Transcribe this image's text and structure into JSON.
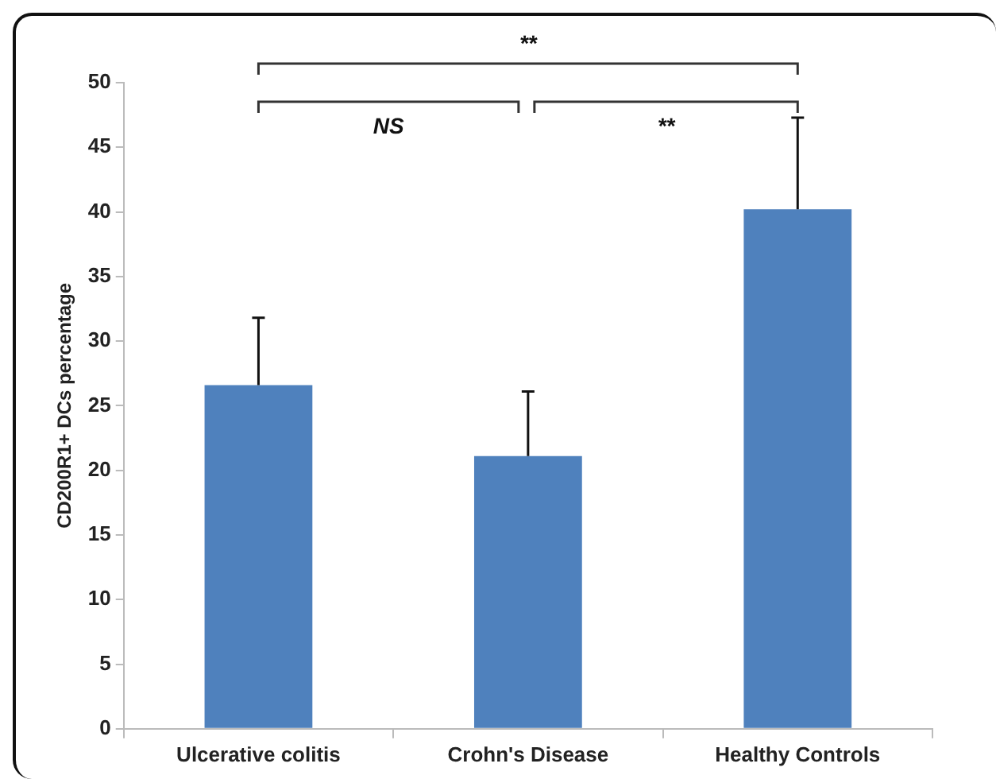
{
  "chart_data": {
    "type": "bar",
    "ylabel": "CD200R1+ DCs percentage",
    "categories": [
      "Ulcerative colitis",
      "Crohn's Disease",
      "Healthy Controls"
    ],
    "values": [
      26.6,
      21.1,
      40.2
    ],
    "color": "#4f81bd",
    "errors": [
      [
        26.6,
        31.8
      ],
      [
        21.1,
        26.1
      ],
      [
        40.2,
        47.3
      ]
    ],
    "ylim": [
      0,
      50
    ],
    "yticks": [
      0,
      5,
      10,
      15,
      20,
      25,
      30,
      35,
      40,
      45,
      50
    ],
    "annotations": [
      "**",
      "NS",
      "**"
    ]
  }
}
